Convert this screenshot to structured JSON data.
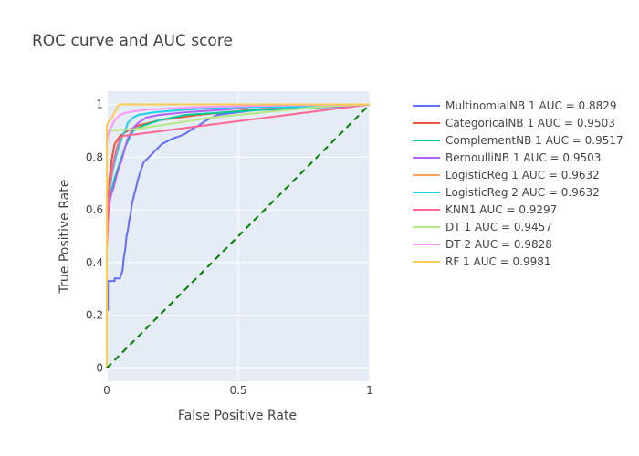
{
  "chart_data": {
    "type": "line",
    "title": "ROC curve and AUC score",
    "xlabel": "False Positive Rate",
    "ylabel": "True Positive Rate",
    "xlim": [
      0,
      1
    ],
    "ylim": [
      -0.05,
      1.05
    ],
    "x_ticks": [
      0,
      0.5,
      1
    ],
    "x_tick_labels": [
      "0",
      "0.5",
      "1"
    ],
    "y_ticks": [
      0,
      0.2,
      0.4,
      0.6,
      0.8,
      1
    ],
    "y_tick_labels": [
      "0",
      "0.2",
      "0.4",
      "0.6",
      "0.8",
      "1"
    ],
    "plot_background": "#e5ecf6",
    "grid": true,
    "legend_position": "right",
    "series": [
      {
        "name": "MultinomialNB 1 AUC = 0.8829",
        "color": "#636efa",
        "points": [
          [
            0,
            0
          ],
          [
            0,
            0.22
          ],
          [
            0.004,
            0.22
          ],
          [
            0.004,
            0.33
          ],
          [
            0.03,
            0.33
          ],
          [
            0.03,
            0.34
          ],
          [
            0.05,
            0.34
          ],
          [
            0.06,
            0.37
          ],
          [
            0.065,
            0.42
          ],
          [
            0.07,
            0.45
          ],
          [
            0.075,
            0.5
          ],
          [
            0.08,
            0.52
          ],
          [
            0.085,
            0.56
          ],
          [
            0.09,
            0.58
          ],
          [
            0.095,
            0.62
          ],
          [
            0.1,
            0.64
          ],
          [
            0.105,
            0.66
          ],
          [
            0.11,
            0.68
          ],
          [
            0.115,
            0.7
          ],
          [
            0.12,
            0.72
          ],
          [
            0.13,
            0.75
          ],
          [
            0.14,
            0.78
          ],
          [
            0.17,
            0.81
          ],
          [
            0.19,
            0.83
          ],
          [
            0.21,
            0.85
          ],
          [
            0.25,
            0.87
          ],
          [
            0.28,
            0.88
          ],
          [
            0.3,
            0.89
          ],
          [
            0.33,
            0.91
          ],
          [
            0.35,
            0.92
          ],
          [
            0.38,
            0.94
          ],
          [
            0.42,
            0.96
          ],
          [
            0.5,
            0.97
          ],
          [
            0.58,
            0.98
          ],
          [
            0.65,
            0.98
          ],
          [
            0.7,
            0.99
          ],
          [
            0.8,
            0.99
          ],
          [
            0.9,
            0.99
          ],
          [
            1,
            1
          ]
        ]
      },
      {
        "name": "CategoricalNB 1 AUC = 0.9503",
        "color": "#ef553b",
        "points": [
          [
            0,
            0
          ],
          [
            0,
            0.47
          ],
          [
            0.005,
            0.62
          ],
          [
            0.01,
            0.72
          ],
          [
            0.02,
            0.8
          ],
          [
            0.03,
            0.85
          ],
          [
            0.05,
            0.88
          ],
          [
            0.08,
            0.9
          ],
          [
            0.12,
            0.92
          ],
          [
            0.2,
            0.94
          ],
          [
            0.35,
            0.96
          ],
          [
            0.55,
            0.98
          ],
          [
            0.8,
            0.99
          ],
          [
            1,
            1
          ]
        ]
      },
      {
        "name": "ComplementNB 1 AUC = 0.9517",
        "color": "#00cc96",
        "points": [
          [
            0,
            0
          ],
          [
            0,
            0.55
          ],
          [
            0.005,
            0.6
          ],
          [
            0.01,
            0.64
          ],
          [
            0.015,
            0.66
          ],
          [
            0.02,
            0.68
          ],
          [
            0.025,
            0.7
          ],
          [
            0.03,
            0.72
          ],
          [
            0.04,
            0.75
          ],
          [
            0.05,
            0.78
          ],
          [
            0.06,
            0.81
          ],
          [
            0.07,
            0.84
          ],
          [
            0.08,
            0.86
          ],
          [
            0.09,
            0.88
          ],
          [
            0.1,
            0.9
          ],
          [
            0.14,
            0.92
          ],
          [
            0.2,
            0.94
          ],
          [
            0.3,
            0.96
          ],
          [
            0.45,
            0.97
          ],
          [
            0.6,
            0.98
          ],
          [
            0.85,
            0.99
          ],
          [
            1,
            1
          ]
        ]
      },
      {
        "name": "BernoulliNB 1 AUC = 0.9503",
        "color": "#ab63fa",
        "points": [
          [
            0,
            0
          ],
          [
            0,
            0.5
          ],
          [
            0.005,
            0.58
          ],
          [
            0.01,
            0.62
          ],
          [
            0.015,
            0.65
          ],
          [
            0.02,
            0.67
          ],
          [
            0.025,
            0.68
          ],
          [
            0.03,
            0.7
          ],
          [
            0.04,
            0.74
          ],
          [
            0.05,
            0.77
          ],
          [
            0.06,
            0.8
          ],
          [
            0.07,
            0.84
          ],
          [
            0.08,
            0.87
          ],
          [
            0.09,
            0.89
          ],
          [
            0.1,
            0.91
          ],
          [
            0.12,
            0.93
          ],
          [
            0.15,
            0.95
          ],
          [
            0.2,
            0.96
          ],
          [
            0.3,
            0.97
          ],
          [
            0.45,
            0.98
          ],
          [
            0.55,
            0.99
          ],
          [
            0.85,
            0.99
          ],
          [
            1,
            1
          ]
        ]
      },
      {
        "name": "LogisticReg 1 AUC = 0.9632",
        "color": "#ffa15a",
        "points": [
          [
            0,
            0
          ],
          [
            0,
            0.6
          ],
          [
            0.005,
            0.63
          ],
          [
            0.01,
            0.66
          ],
          [
            0.015,
            0.7
          ],
          [
            0.02,
            0.74
          ],
          [
            0.03,
            0.78
          ],
          [
            0.04,
            0.82
          ],
          [
            0.05,
            0.85
          ],
          [
            0.06,
            0.88
          ],
          [
            0.07,
            0.9
          ],
          [
            0.08,
            0.93
          ],
          [
            0.1,
            0.95
          ],
          [
            0.12,
            0.96
          ],
          [
            0.18,
            0.97
          ],
          [
            0.3,
            0.98
          ],
          [
            0.5,
            0.99
          ],
          [
            0.75,
            0.99
          ],
          [
            1,
            1
          ]
        ]
      },
      {
        "name": "LogisticReg 2 AUC = 0.9632",
        "color": "#19d3f3",
        "points": [
          [
            0,
            0
          ],
          [
            0,
            0.6
          ],
          [
            0.005,
            0.63
          ],
          [
            0.01,
            0.66
          ],
          [
            0.015,
            0.7
          ],
          [
            0.02,
            0.74
          ],
          [
            0.03,
            0.78
          ],
          [
            0.04,
            0.82
          ],
          [
            0.05,
            0.85
          ],
          [
            0.06,
            0.88
          ],
          [
            0.07,
            0.9
          ],
          [
            0.08,
            0.93
          ],
          [
            0.1,
            0.95
          ],
          [
            0.12,
            0.96
          ],
          [
            0.18,
            0.97
          ],
          [
            0.3,
            0.98
          ],
          [
            0.5,
            0.99
          ],
          [
            0.75,
            0.99
          ],
          [
            1,
            1
          ]
        ]
      },
      {
        "name": "KNN1 AUC = 0.9297",
        "color": "#ff6692",
        "points": [
          [
            0,
            0
          ],
          [
            0,
            0.45
          ],
          [
            0.01,
            0.68
          ],
          [
            0.02,
            0.75
          ],
          [
            0.03,
            0.8
          ],
          [
            0.04,
            0.84
          ],
          [
            0.05,
            0.87
          ],
          [
            0.06,
            0.88
          ],
          [
            1,
            1
          ]
        ]
      },
      {
        "name": "DT 1 AUC = 0.9457",
        "color": "#b6e880",
        "points": [
          [
            0,
            0
          ],
          [
            0,
            0.9
          ],
          [
            0.1,
            0.905
          ],
          [
            0.2,
            0.92
          ],
          [
            0.3,
            0.935
          ],
          [
            0.4,
            0.95
          ],
          [
            0.5,
            0.96
          ],
          [
            0.6,
            0.97
          ],
          [
            0.7,
            0.98
          ],
          [
            0.8,
            0.99
          ],
          [
            0.9,
            0.995
          ],
          [
            1,
            1
          ]
        ]
      },
      {
        "name": "DT 2 AUC = 0.9828",
        "color": "#ff97ff",
        "points": [
          [
            0,
            0
          ],
          [
            0,
            0.85
          ],
          [
            0.005,
            0.88
          ],
          [
            0.01,
            0.9
          ],
          [
            0.02,
            0.92
          ],
          [
            0.03,
            0.94
          ],
          [
            0.05,
            0.96
          ],
          [
            0.08,
            0.97
          ],
          [
            0.15,
            0.98
          ],
          [
            0.35,
            0.99
          ],
          [
            0.6,
            0.995
          ],
          [
            1,
            1
          ]
        ]
      },
      {
        "name": "RF 1 AUC = 0.9981",
        "color": "#fecb52",
        "points": [
          [
            0,
            0
          ],
          [
            0,
            0.92
          ],
          [
            0.01,
            0.94
          ],
          [
            0.02,
            0.95
          ],
          [
            0.03,
            0.97
          ],
          [
            0.04,
            0.99
          ],
          [
            0.05,
            1.0
          ],
          [
            1,
            1
          ]
        ]
      }
    ],
    "baseline": {
      "color": "#008000",
      "style": "dashed",
      "points": [
        [
          0,
          0
        ],
        [
          1,
          1
        ]
      ]
    }
  }
}
